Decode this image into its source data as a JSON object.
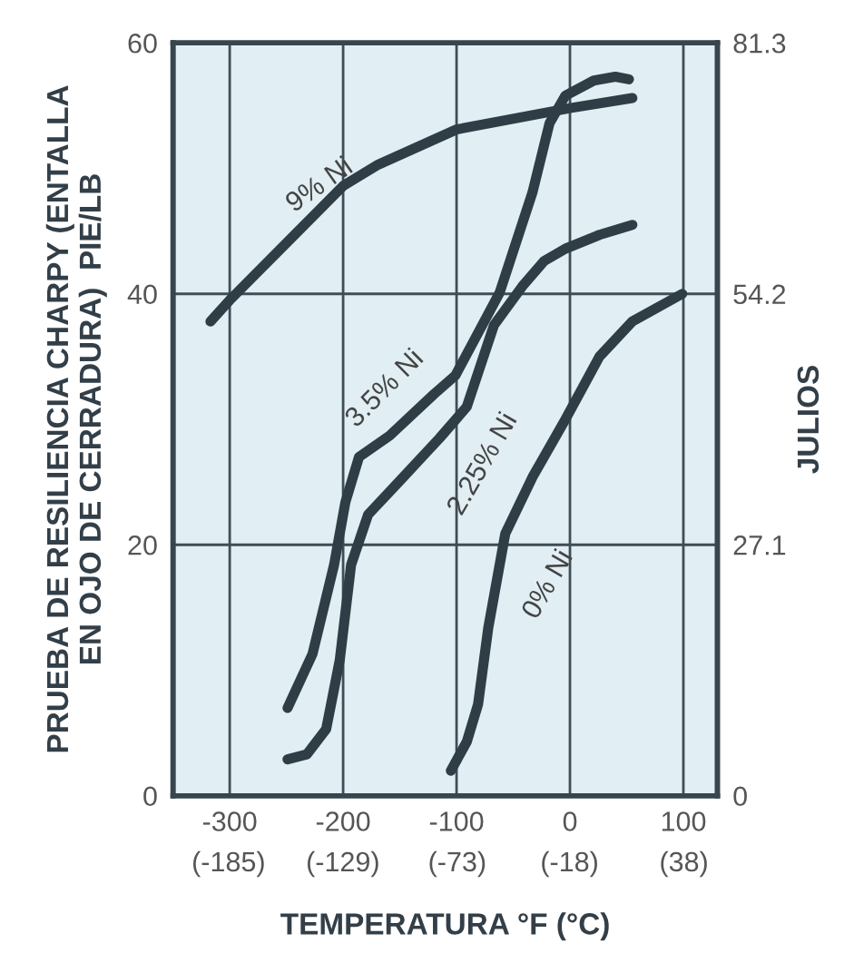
{
  "chart_data": {
    "type": "line",
    "xlabel": "TEMPERATURA °F (°C)",
    "ylabel": "PRUEBA DE RESILIENCIA CHARPY (ENTALLA\nEN OJO DE CERRADURA)  PIE/LB",
    "y2label": "JULIOS",
    "xlim": [
      -350,
      130
    ],
    "xticks": [
      -300,
      -200,
      -100,
      0,
      100
    ],
    "x2lim": [
      -212.2,
      54.4
    ],
    "x2ticks": [
      {
        "value": -185,
        "label": "(-185)"
      },
      {
        "value": -129,
        "label": "(-129)"
      },
      {
        "value": -73,
        "label": "(-73)"
      },
      {
        "value": -18,
        "label": "(-18)"
      },
      {
        "value": 38,
        "label": "(38)"
      }
    ],
    "ylim": [
      0,
      60
    ],
    "yticks": [
      0,
      20,
      40,
      60
    ],
    "y2lim": [
      0,
      81.3
    ],
    "y2ticks": [
      0,
      27.1,
      54.2,
      81.3
    ],
    "grid": true,
    "marker": "none",
    "line_style": "solid",
    "series": [
      {
        "color": "#2f3e46",
        "x": [
          -317,
          -300,
          -200,
          -169,
          -100,
          0,
          55
        ],
        "values": [
          37.8,
          39.5,
          48.6,
          50.3,
          53.1,
          54.8,
          55.6
        ]
      },
      {
        "color": "#2f3e46",
        "x": [
          -249,
          -227,
          -208,
          -198,
          -186,
          -159,
          -120,
          -101,
          -62,
          -33,
          -18,
          -4,
          21,
          40,
          52
        ],
        "values": [
          7.0,
          11.3,
          18.4,
          23.4,
          27.0,
          28.7,
          32.0,
          33.5,
          40.1,
          48.1,
          53.6,
          55.8,
          57.0,
          57.3,
          57.1
        ]
      },
      {
        "color": "#2f3e46",
        "x": [
          -249,
          -232,
          -215,
          -203,
          -193,
          -178,
          -149,
          -115,
          -91,
          -67,
          -42,
          -23,
          -4,
          26,
          55
        ],
        "values": [
          2.9,
          3.3,
          5.3,
          10.8,
          18.4,
          22.4,
          25.2,
          28.5,
          31.0,
          37.5,
          40.6,
          42.6,
          43.6,
          44.7,
          45.5
        ]
      },
      {
        "color": "#2f3e46",
        "x": [
          -105,
          -91,
          -81,
          -72,
          -57,
          -33,
          -4,
          26,
          55,
          99
        ],
        "values": [
          2.0,
          4.3,
          7.3,
          13.4,
          20.9,
          25.4,
          30.0,
          35.0,
          37.8,
          40.0
        ]
      }
    ],
    "annotations": [
      "9% Ni",
      "3.5% Ni",
      "2.25% Ni",
      "0% Ni"
    ]
  }
}
